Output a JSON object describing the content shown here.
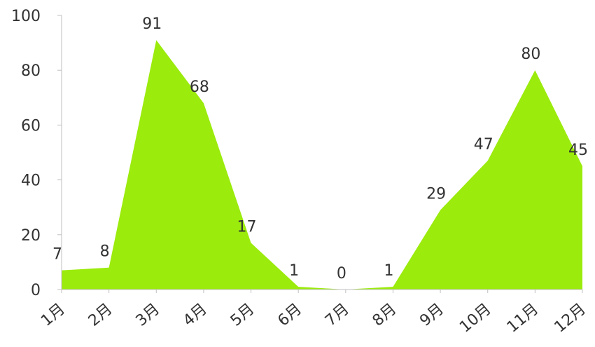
{
  "chart_data": {
    "type": "area",
    "categories": [
      "1月",
      "2月",
      "3月",
      "4月",
      "5月",
      "6月",
      "7月",
      "8月",
      "9月",
      "10月",
      "11月",
      "12月"
    ],
    "series": [
      {
        "values": [
          7,
          8,
          91,
          68,
          17,
          1,
          0,
          1,
          29,
          47,
          80,
          45
        ]
      }
    ],
    "ylim": [
      0,
      100
    ],
    "yticks": [
      0,
      20,
      40,
      60,
      80,
      100
    ],
    "grid": false,
    "legend": "none",
    "data_labels": true,
    "colors": {
      "fill": "#9BEB0C",
      "axis": "#bfbfbf",
      "text": "#333333"
    }
  }
}
